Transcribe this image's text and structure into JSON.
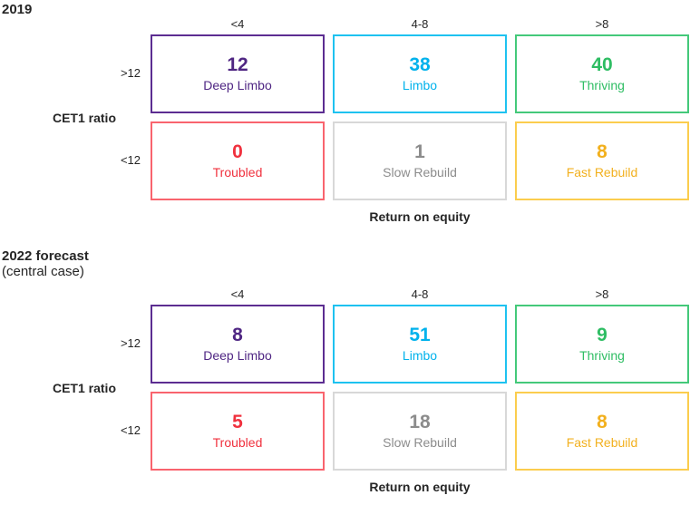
{
  "page": {
    "background": "#ffffff",
    "text_color": "#262626"
  },
  "categories": {
    "deep_limbo": {
      "border": "#5C2D91",
      "text": "#4F2683"
    },
    "limbo": {
      "border": "#1EC2F0",
      "text": "#00B2EC"
    },
    "thriving": {
      "border": "#44C97A",
      "text": "#2EBD63"
    },
    "troubled": {
      "border": "#F9646E",
      "text": "#F0313E"
    },
    "slow_rebuild": {
      "border": "#D8D8D8",
      "text": "#8C8C8C"
    },
    "fast_rebuild": {
      "border": "#FBCD4E",
      "text": "#F2B01E"
    }
  },
  "chart_data": [
    {
      "type": "heatmap",
      "title": "2019",
      "subtitle": "",
      "xlabel": "Return on equity",
      "ylabel": "CET1 ratio",
      "x_categories": [
        "<4",
        "4-8",
        ">8"
      ],
      "y_categories": [
        ">12",
        "<12"
      ],
      "legend_position": "none",
      "cells": [
        {
          "x": "<4",
          "y": ">12",
          "value": 12,
          "label": "Deep Limbo",
          "category": "deep_limbo"
        },
        {
          "x": "4-8",
          "y": ">12",
          "value": 38,
          "label": "Limbo",
          "category": "limbo"
        },
        {
          "x": ">8",
          "y": ">12",
          "value": 40,
          "label": "Thriving",
          "category": "thriving"
        },
        {
          "x": "<4",
          "y": "<12",
          "value": 0,
          "label": "Troubled",
          "category": "troubled"
        },
        {
          "x": "4-8",
          "y": "<12",
          "value": 1,
          "label": "Slow Rebuild",
          "category": "slow_rebuild"
        },
        {
          "x": ">8",
          "y": "<12",
          "value": 8,
          "label": "Fast Rebuild",
          "category": "fast_rebuild"
        }
      ]
    },
    {
      "type": "heatmap",
      "title": "2022 forecast",
      "subtitle": "(central case)",
      "xlabel": "Return on equity",
      "ylabel": "CET1 ratio",
      "x_categories": [
        "<4",
        "4-8",
        ">8"
      ],
      "y_categories": [
        ">12",
        "<12"
      ],
      "legend_position": "none",
      "cells": [
        {
          "x": "<4",
          "y": ">12",
          "value": 8,
          "label": "Deep Limbo",
          "category": "deep_limbo"
        },
        {
          "x": "4-8",
          "y": ">12",
          "value": 51,
          "label": "Limbo",
          "category": "limbo"
        },
        {
          "x": ">8",
          "y": ">12",
          "value": 9,
          "label": "Thriving",
          "category": "thriving"
        },
        {
          "x": "<4",
          "y": "<12",
          "value": 5,
          "label": "Troubled",
          "category": "troubled"
        },
        {
          "x": "4-8",
          "y": "<12",
          "value": 18,
          "label": "Slow Rebuild",
          "category": "slow_rebuild"
        },
        {
          "x": ">8",
          "y": "<12",
          "value": 8,
          "label": "Fast Rebuild",
          "category": "fast_rebuild"
        }
      ]
    }
  ]
}
